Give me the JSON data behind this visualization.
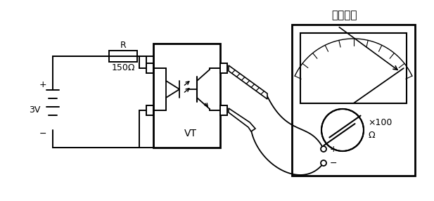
{
  "bg_color": "#ffffff",
  "annotation_text": "阻値很小",
  "resistor_label_r": "R",
  "resistor_label_val": "150Ω",
  "battery_label": "3V",
  "vt_label": "VT",
  "meter_label1": "×100",
  "meter_label2": "Ω",
  "plus_label": "+",
  "minus_label": "−",
  "batt_plus": "+",
  "batt_minus": "−"
}
